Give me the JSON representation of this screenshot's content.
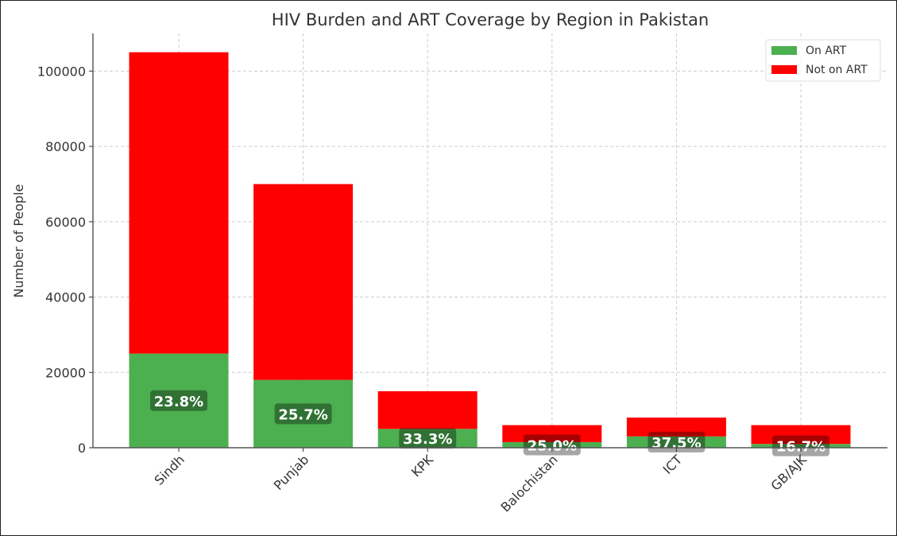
{
  "chart_data": {
    "type": "bar",
    "stacked": true,
    "title": "HIV Burden and ART Coverage by Region in Pakistan",
    "xlabel": "",
    "ylabel": "Number of People",
    "categories": [
      "Sindh",
      "Punjab",
      "KPK",
      "Balochistan",
      "ICT",
      "GB/AJK"
    ],
    "series": [
      {
        "name": "On ART",
        "color": "#4caf50",
        "values": [
          25000,
          18000,
          5000,
          1500,
          3000,
          1000
        ]
      },
      {
        "name": "Not on ART",
        "color": "#ff0000",
        "values": [
          80000,
          52000,
          10000,
          4500,
          5000,
          5000
        ]
      }
    ],
    "data_labels": [
      "23.8%",
      "25.7%",
      "33.3%",
      "25.0%",
      "37.5%",
      "16.7%"
    ],
    "ylim": [
      0,
      110000
    ],
    "yticks": [
      0,
      20000,
      40000,
      60000,
      80000,
      100000
    ],
    "ytick_labels": [
      "0",
      "20000",
      "40000",
      "60000",
      "80000",
      "100000"
    ],
    "grid": true,
    "legend_position": "top-right"
  }
}
